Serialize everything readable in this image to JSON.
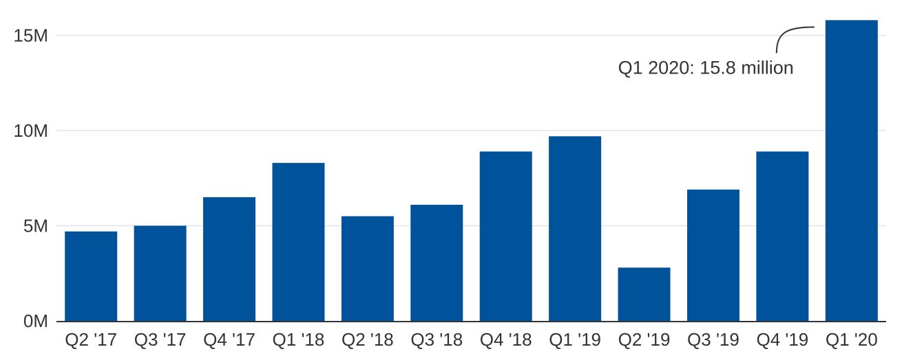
{
  "chart_data": {
    "type": "bar",
    "title": "",
    "xlabel": "",
    "ylabel": "",
    "categories": [
      "Q2 '17",
      "Q3 '17",
      "Q4 '17",
      "Q1 '18",
      "Q2 '18",
      "Q3 '18",
      "Q4 '18",
      "Q1 '19",
      "Q2 '19",
      "Q3 '19",
      "Q4 '19",
      "Q1 '20"
    ],
    "values": [
      4.7,
      5.0,
      6.5,
      8.3,
      5.5,
      6.1,
      8.9,
      9.7,
      2.8,
      6.9,
      8.9,
      15.8
    ],
    "value_unit": "million",
    "ylim": [
      0,
      16.5
    ],
    "yticks": [
      0,
      5,
      10,
      15
    ],
    "ytick_labels": [
      "0M",
      "5M",
      "10M",
      "15M"
    ],
    "grid": true,
    "bar_color": "#00539b",
    "annotation": {
      "text": "Q1 2020: 15.8 million",
      "category": "Q1 '20"
    }
  }
}
